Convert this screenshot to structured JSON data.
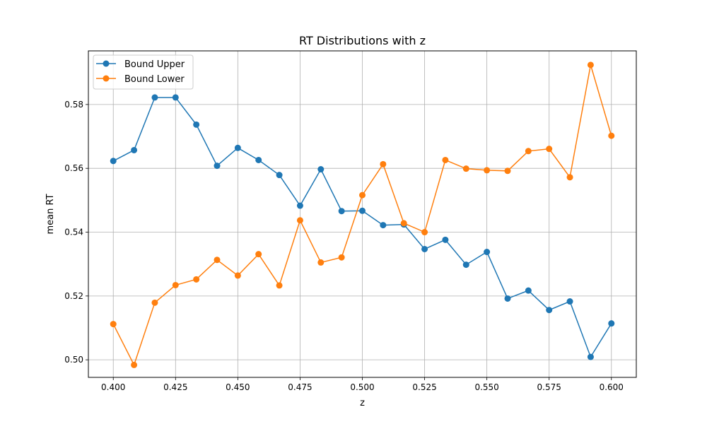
{
  "chart_data": {
    "type": "line",
    "title": "RT Distributions with z",
    "xlabel": "z",
    "ylabel": "mean RT",
    "xlim": [
      0.39,
      0.61
    ],
    "ylim": [
      0.4945,
      0.5968
    ],
    "xticks": [
      "0.400",
      "0.425",
      "0.450",
      "0.475",
      "0.500",
      "0.525",
      "0.550",
      "0.575",
      "0.600"
    ],
    "yticks": [
      "0.50",
      "0.52",
      "0.54",
      "0.56",
      "0.58"
    ],
    "grid": true,
    "legend_position": "top-left",
    "x": [
      0.4,
      0.408333,
      0.416667,
      0.425,
      0.433333,
      0.441667,
      0.45,
      0.458333,
      0.466667,
      0.475,
      0.483333,
      0.491667,
      0.5,
      0.508333,
      0.516667,
      0.525,
      0.533333,
      0.541667,
      0.55,
      0.558333,
      0.566667,
      0.575,
      0.583333,
      0.591667,
      0.6
    ],
    "series": [
      {
        "name": "Bound Upper",
        "color": "#1f77b4",
        "values": [
          0.5623,
          0.5657,
          0.5822,
          0.5822,
          0.5737,
          0.5608,
          0.5664,
          0.5626,
          0.5579,
          0.5483,
          0.5597,
          0.5466,
          0.5467,
          0.5422,
          0.5424,
          0.5347,
          0.5376,
          0.5298,
          0.5338,
          0.5192,
          0.5217,
          0.5156,
          0.5183,
          0.5009,
          0.5114
        ]
      },
      {
        "name": "Bound Lower",
        "color": "#ff7f0e",
        "values": [
          0.5112,
          0.4984,
          0.5179,
          0.5234,
          0.5252,
          0.5313,
          0.5264,
          0.5331,
          0.5233,
          0.5437,
          0.5305,
          0.5321,
          0.5516,
          0.5613,
          0.5428,
          0.54,
          0.5626,
          0.5599,
          0.5594,
          0.5592,
          0.5654,
          0.5661,
          0.5572,
          0.5924,
          0.5702
        ]
      }
    ]
  }
}
